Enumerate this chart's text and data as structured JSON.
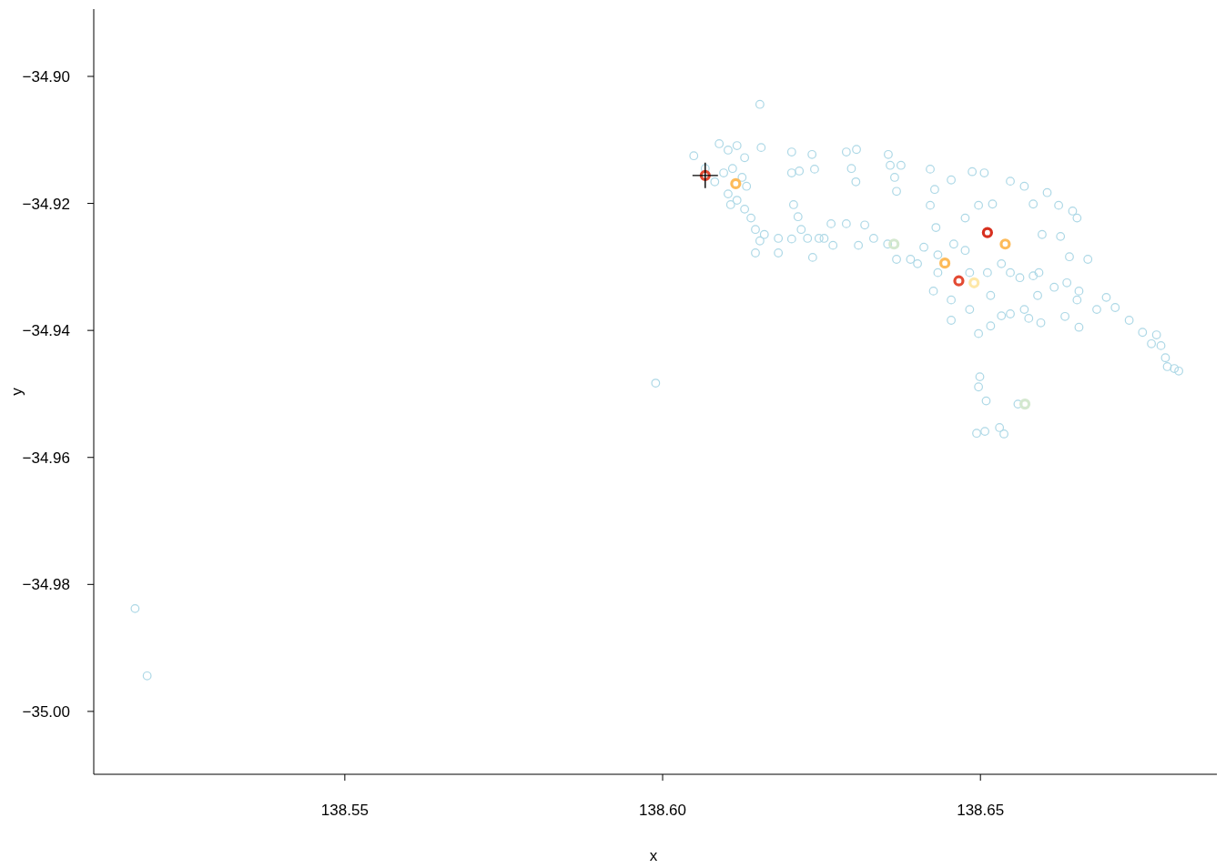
{
  "chart_data": {
    "type": "scatter",
    "xlabel": "x",
    "ylabel": "y",
    "xlim": [
      138.5105,
      138.6872
    ],
    "ylim": [
      -35.0099,
      -34.8894
    ],
    "xticks": [
      {
        "value": 138.55,
        "label": "138.55"
      },
      {
        "value": 138.6,
        "label": "138.60"
      },
      {
        "value": 138.65,
        "label": "138.65"
      }
    ],
    "yticks": [
      {
        "value": -35,
        "label": "−35.00"
      },
      {
        "value": -34.98,
        "label": "−34.98"
      },
      {
        "value": -34.96,
        "label": "−34.96"
      },
      {
        "value": -34.94,
        "label": "−34.94"
      },
      {
        "value": -34.92,
        "label": "−34.92"
      },
      {
        "value": -34.9,
        "label": "−34.90"
      }
    ],
    "grid": false,
    "marker": "circle",
    "series": [
      {
        "color": "#add8e6",
        "x": [
          138.517,
          138.5189,
          138.5989,
          138.6153,
          138.6049,
          138.6067,
          138.6089,
          138.6103,
          138.6129,
          138.6117,
          138.6155,
          138.6082,
          138.6096,
          138.611,
          138.6125,
          138.6132,
          138.6103,
          138.6117,
          138.6107,
          138.6129,
          138.6139,
          138.6146,
          138.616,
          138.6182,
          138.6203,
          138.6228,
          138.6246,
          138.6254,
          138.6153,
          138.6146,
          138.6182,
          138.6236,
          138.6203,
          138.6235,
          138.6289,
          138.6305,
          138.6297,
          138.6304,
          138.6203,
          138.6215,
          138.6239,
          138.6206,
          138.6213,
          138.6218,
          138.6265,
          138.6289,
          138.6318,
          138.6268,
          138.6308,
          138.6355,
          138.6358,
          138.6375,
          138.6365,
          138.6368,
          138.6421,
          138.6428,
          138.6454,
          138.6487,
          138.6506,
          138.6421,
          138.643,
          138.6476,
          138.6497,
          138.6519,
          138.6547,
          138.6569,
          138.6583,
          138.6605,
          138.6623,
          138.6645,
          138.6652,
          138.6626,
          138.6597,
          138.6332,
          138.6354,
          138.6368,
          138.639,
          138.6401,
          138.6411,
          138.6433,
          138.6458,
          138.6476,
          138.6433,
          138.6426,
          138.6454,
          138.6483,
          138.6511,
          138.6533,
          138.6547,
          138.6562,
          138.6583,
          138.6592,
          138.6616,
          138.6636,
          138.6655,
          138.6652,
          138.6669,
          138.664,
          138.659,
          138.6569,
          138.6547,
          138.6516,
          138.6454,
          138.6483,
          138.6516,
          138.6497,
          138.6533,
          138.6576,
          138.6595,
          138.6633,
          138.6655,
          138.6683,
          138.6698,
          138.6712,
          138.6734,
          138.6755,
          138.6777,
          138.6784,
          138.6769,
          138.6791,
          138.6794,
          138.6805,
          138.6812,
          138.6499,
          138.6497,
          138.6509,
          138.6559,
          138.6494,
          138.6507,
          138.653,
          138.6537
        ],
        "values": [
          -34.9838,
          -34.9944,
          -34.9483,
          -34.9044,
          -34.9125,
          -34.9145,
          -34.9106,
          -34.9116,
          -34.9128,
          -34.9109,
          -34.9112,
          -34.9166,
          -34.9152,
          -34.9145,
          -34.9159,
          -34.9173,
          -34.9185,
          -34.9195,
          -34.9202,
          -34.9209,
          -34.9223,
          -34.9241,
          -34.9249,
          -34.9255,
          -34.9256,
          -34.9255,
          -34.9255,
          -34.9255,
          -34.9259,
          -34.9278,
          -34.9278,
          -34.9285,
          -34.9119,
          -34.9123,
          -34.9119,
          -34.9115,
          -34.9145,
          -34.9166,
          -34.9152,
          -34.9149,
          -34.9146,
          -34.9202,
          -34.9221,
          -34.9241,
          -34.9232,
          -34.9232,
          -34.9234,
          -34.9266,
          -34.9266,
          -34.9123,
          -34.914,
          -34.914,
          -34.9159,
          -34.9181,
          -34.9146,
          -34.9178,
          -34.9163,
          -34.915,
          -34.9152,
          -34.9203,
          -34.9238,
          -34.9223,
          -34.9203,
          -34.9201,
          -34.9165,
          -34.9173,
          -34.9201,
          -34.9183,
          -34.9203,
          -34.9212,
          -34.9223,
          -34.9252,
          -34.9249,
          -34.9255,
          -34.9264,
          -34.9288,
          -34.9288,
          -34.9295,
          -34.9269,
          -34.9281,
          -34.9264,
          -34.9274,
          -34.9309,
          -34.9338,
          -34.9352,
          -34.9309,
          -34.9309,
          -34.9295,
          -34.9309,
          -34.9317,
          -34.9314,
          -34.9309,
          -34.9332,
          -34.9325,
          -34.9338,
          -34.9352,
          -34.9288,
          -34.9284,
          -34.9345,
          -34.9367,
          -34.9374,
          -34.9345,
          -34.9384,
          -34.9367,
          -34.9393,
          -34.9405,
          -34.9377,
          -34.9381,
          -34.9388,
          -34.9378,
          -34.9395,
          -34.9367,
          -34.9348,
          -34.9364,
          -34.9384,
          -34.9403,
          -34.9407,
          -34.9424,
          -34.9421,
          -34.9443,
          -34.9457,
          -34.946,
          -34.9464,
          -34.9473,
          -34.9489,
          -34.9511,
          -34.9516,
          -34.9562,
          -34.9559,
          -34.9553,
          -34.9563
        ]
      },
      {
        "x": [
          138.6067,
          138.6511,
          138.6466,
          138.6115,
          138.6539,
          138.6444,
          138.649,
          138.6364,
          138.657
        ],
        "values": [
          -34.9156,
          -34.9246,
          -34.9322,
          -34.9169,
          -34.9264,
          -34.9294,
          -34.9325,
          -34.9264,
          -34.9516
        ],
        "colors": [
          "#e34a33",
          "#d7301f",
          "#e34a33",
          "#fdbb5a",
          "#fdbb5a",
          "#fdbb5a",
          "#fee8a8",
          "#d4e8cf",
          "#d4e8cf"
        ]
      },
      {
        "color": "#000000",
        "marker": "cross",
        "x": [
          138.6067
        ],
        "values": [
          -34.9156
        ]
      }
    ]
  }
}
